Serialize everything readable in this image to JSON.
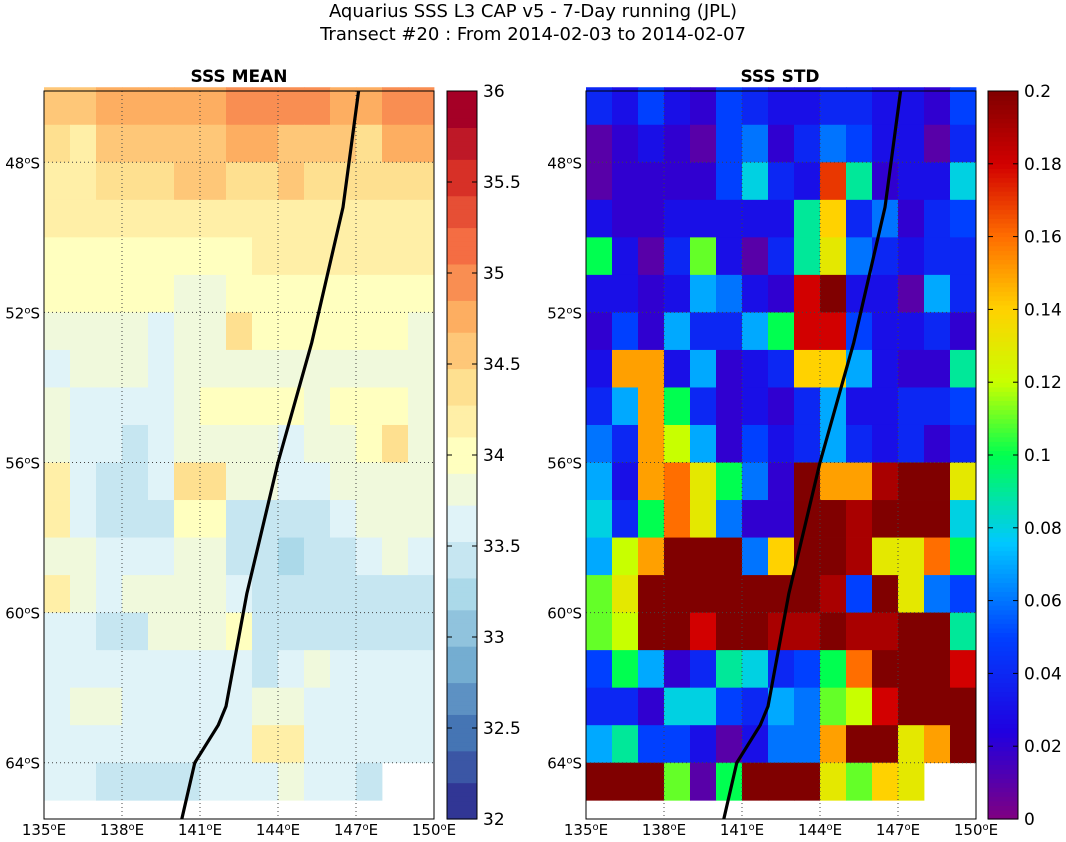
{
  "title_line1": "Aquarius SSS L3 CAP v5 - 7-Day running (JPL)",
  "title_line2": "Transect #20 : From 2014-02-03 to 2014-02-07",
  "chart_data": [
    {
      "type": "heatmap",
      "title": "SSS MEAN",
      "xlim": [
        135,
        150
      ],
      "ylim": [
        -65.5,
        -46.1
      ],
      "x_ticks": [
        135,
        138,
        141,
        144,
        147,
        150
      ],
      "x_tick_labels": [
        "135°E",
        "138°E",
        "141°E",
        "144°E",
        "147°E",
        "150°E"
      ],
      "y_ticks": [
        -48,
        -52,
        -56,
        -60,
        -64
      ],
      "y_tick_labels": [
        "48°S",
        "52°S",
        "56°S",
        "60°S",
        "64°S"
      ],
      "cell_lon_step": 1,
      "cell_lat_step": 1,
      "first_row_lat": -46.5,
      "colorbar": {
        "colormap": "RdYlBu_r",
        "range": [
          32,
          36
        ],
        "levels": 21,
        "ticks": [
          32,
          32.5,
          33,
          33.5,
          34,
          34.5,
          35,
          35.5,
          36
        ],
        "tick_labels": [
          "32",
          "32.5",
          "33",
          "33.5",
          "34",
          "34.5",
          "35",
          "35.5",
          "36"
        ]
      },
      "grid": true,
      "values": [
        [
          34.5,
          34.5,
          34.7,
          34.8,
          34.7,
          34.8,
          34.8,
          34.9,
          34.9,
          34.9,
          34.9,
          34.8,
          34.8,
          34.9,
          34.9
        ],
        [
          34.3,
          34.2,
          34.6,
          34.6,
          34.6,
          34.6,
          34.6,
          34.7,
          34.7,
          34.6,
          34.6,
          34.6,
          34.4,
          34.7,
          34.7
        ],
        [
          34.2,
          34.2,
          34.4,
          34.4,
          34.4,
          34.5,
          34.5,
          34.4,
          34.4,
          34.5,
          34.4,
          34.4,
          34.4,
          34.4,
          34.4
        ],
        [
          34.2,
          34.2,
          34.2,
          34.2,
          34.2,
          34.2,
          34.2,
          34.2,
          34.2,
          34.2,
          34.2,
          34.2,
          34.2,
          34.2,
          34.2
        ],
        [
          34.0,
          34.0,
          34.0,
          34.0,
          34.0,
          34.0,
          34.0,
          34.0,
          34.1,
          34.1,
          34.1,
          34.2,
          34.2,
          34.2,
          34.2
        ],
        [
          34.0,
          34.0,
          34.0,
          34.0,
          34.0,
          33.9,
          33.9,
          34.0,
          34.0,
          34.0,
          34.0,
          34.0,
          34.0,
          34.0,
          34.0
        ],
        [
          33.8,
          33.8,
          33.8,
          33.8,
          33.7,
          33.9,
          33.8,
          34.3,
          34.0,
          34.0,
          34.0,
          34.0,
          34.0,
          34.0,
          33.8
        ],
        [
          33.6,
          33.8,
          33.8,
          33.8,
          33.6,
          33.8,
          33.8,
          33.9,
          33.9,
          33.8,
          33.8,
          33.8,
          33.8,
          33.8,
          33.8
        ],
        [
          33.8,
          33.6,
          33.6,
          33.6,
          33.6,
          33.8,
          34.0,
          34.0,
          34.0,
          34.0,
          33.9,
          34.0,
          34.0,
          34.0,
          33.8
        ],
        [
          33.8,
          33.6,
          33.6,
          33.5,
          33.6,
          33.8,
          33.8,
          33.8,
          33.8,
          33.6,
          33.8,
          33.9,
          34.0,
          34.3,
          33.8
        ],
        [
          34.1,
          33.6,
          33.5,
          33.5,
          33.6,
          34.3,
          34.3,
          33.8,
          33.8,
          33.6,
          33.6,
          33.8,
          33.8,
          33.8,
          33.8
        ],
        [
          34.1,
          33.6,
          33.5,
          33.4,
          33.5,
          34.0,
          34.0,
          33.5,
          33.4,
          33.4,
          33.5,
          33.6,
          33.8,
          33.8,
          33.8
        ],
        [
          33.9,
          33.8,
          33.6,
          33.6,
          33.6,
          33.9,
          33.9,
          33.5,
          33.4,
          33.3,
          33.4,
          33.5,
          33.6,
          33.8,
          33.6
        ],
        [
          34.1,
          33.8,
          33.6,
          33.8,
          33.8,
          33.8,
          33.8,
          33.6,
          33.5,
          33.5,
          33.5,
          33.4,
          33.4,
          33.4,
          33.5
        ],
        [
          33.6,
          33.6,
          33.5,
          33.5,
          33.8,
          33.8,
          33.8,
          34.0,
          33.5,
          33.5,
          33.5,
          33.5,
          33.5,
          33.5,
          33.4
        ],
        [
          33.6,
          33.6,
          33.6,
          33.6,
          33.6,
          33.6,
          33.6,
          33.6,
          33.5,
          33.6,
          33.8,
          33.6,
          33.6,
          33.6,
          33.6
        ],
        [
          33.6,
          33.8,
          33.8,
          33.6,
          33.6,
          33.6,
          33.6,
          33.6,
          33.8,
          33.9,
          33.6,
          33.6,
          33.6,
          33.6,
          33.6
        ],
        [
          33.6,
          33.6,
          33.6,
          33.6,
          33.6,
          33.6,
          33.6,
          33.6,
          34.1,
          34.1,
          33.6,
          33.6,
          33.6,
          33.6,
          33.6
        ],
        [
          33.6,
          33.6,
          33.5,
          33.4,
          33.4,
          33.5,
          33.6,
          33.6,
          33.6,
          33.8,
          33.6,
          33.6,
          33.5,
          null,
          null
        ]
      ],
      "track": [
        [
          147.1,
          -46.1
        ],
        [
          146.5,
          -49.2
        ],
        [
          145.3,
          -52.8
        ],
        [
          144.0,
          -56.0
        ],
        [
          142.8,
          -59.5
        ],
        [
          142.0,
          -62.5
        ],
        [
          141.7,
          -63.0
        ],
        [
          140.8,
          -64.0
        ],
        [
          140.3,
          -65.5
        ]
      ]
    },
    {
      "type": "heatmap",
      "title": "SSS STD",
      "xlim": [
        135,
        150
      ],
      "ylim": [
        -65.5,
        -46.1
      ],
      "x_ticks": [
        135,
        138,
        141,
        144,
        147,
        150
      ],
      "x_tick_labels": [
        "135°E",
        "138°E",
        "141°E",
        "144°E",
        "147°E",
        "150°E"
      ],
      "y_ticks": [
        -48,
        -52,
        -56,
        -60,
        -64
      ],
      "y_tick_labels": [
        "48°S",
        "52°S",
        "56°S",
        "60°S",
        "64°S"
      ],
      "cell_lon_step": 1,
      "cell_lat_step": 1,
      "first_row_lat": -46.5,
      "colorbar": {
        "colormap": "jet-with-purple",
        "range": [
          0,
          0.2
        ],
        "ticks": [
          0,
          0.02,
          0.04,
          0.06,
          0.08,
          0.1,
          0.12,
          0.14,
          0.16,
          0.18,
          0.2
        ],
        "tick_labels": [
          "0",
          "0.02",
          "0.04",
          "0.06",
          "0.08",
          "0.1",
          "0.12",
          "0.14",
          "0.16",
          "0.18",
          "0.2"
        ]
      },
      "grid": true,
      "values": [
        [
          0.04,
          0.03,
          0.05,
          0.03,
          0.02,
          0.05,
          0.04,
          0.03,
          0.03,
          0.04,
          0.04,
          0.03,
          0.03,
          0.02,
          0.05
        ],
        [
          0.01,
          0.02,
          0.03,
          0.02,
          0.01,
          0.05,
          0.06,
          0.02,
          0.04,
          0.06,
          0.05,
          0.03,
          0.03,
          0.01,
          0.04
        ],
        [
          0.01,
          0.02,
          0.02,
          0.02,
          0.02,
          0.05,
          0.08,
          0.04,
          0.03,
          0.17,
          0.09,
          0.02,
          0.03,
          0.03,
          0.08
        ],
        [
          0.03,
          0.02,
          0.02,
          0.03,
          0.03,
          0.03,
          0.03,
          0.03,
          0.09,
          0.14,
          0.04,
          0.06,
          0.02,
          0.04,
          0.05
        ],
        [
          0.1,
          0.03,
          0.01,
          0.04,
          0.11,
          0.03,
          0.01,
          0.04,
          0.09,
          0.13,
          0.06,
          0.04,
          0.03,
          0.04,
          0.04
        ],
        [
          0.03,
          0.03,
          0.02,
          0.03,
          0.07,
          0.06,
          0.03,
          0.02,
          0.18,
          0.2,
          0.03,
          0.03,
          0.01,
          0.07,
          0.04
        ],
        [
          0.02,
          0.05,
          0.02,
          0.07,
          0.04,
          0.04,
          0.07,
          0.1,
          0.18,
          0.18,
          0.05,
          0.03,
          0.03,
          0.04,
          0.02
        ],
        [
          0.03,
          0.15,
          0.15,
          0.03,
          0.07,
          0.02,
          0.03,
          0.04,
          0.14,
          0.14,
          0.07,
          0.03,
          0.02,
          0.02,
          0.09
        ],
        [
          0.04,
          0.07,
          0.15,
          0.1,
          0.04,
          0.02,
          0.03,
          0.02,
          0.04,
          0.07,
          0.03,
          0.03,
          0.04,
          0.04,
          0.05
        ],
        [
          0.06,
          0.04,
          0.15,
          0.12,
          0.07,
          0.02,
          0.05,
          0.03,
          0.04,
          0.07,
          0.04,
          0.03,
          0.04,
          0.02,
          0.04
        ],
        [
          0.07,
          0.03,
          0.15,
          0.16,
          0.13,
          0.1,
          0.06,
          0.02,
          0.2,
          0.15,
          0.15,
          0.19,
          0.2,
          0.2,
          0.13
        ],
        [
          0.08,
          0.04,
          0.1,
          0.16,
          0.13,
          0.06,
          0.02,
          0.02,
          0.2,
          0.2,
          0.19,
          0.2,
          0.2,
          0.2,
          0.08
        ],
        [
          0.07,
          0.12,
          0.15,
          0.2,
          0.2,
          0.2,
          0.06,
          0.14,
          0.2,
          0.2,
          0.19,
          0.13,
          0.13,
          0.16,
          0.1
        ],
        [
          0.11,
          0.13,
          0.2,
          0.2,
          0.2,
          0.2,
          0.2,
          0.2,
          0.2,
          0.19,
          0.05,
          0.2,
          0.13,
          0.06,
          0.05
        ],
        [
          0.11,
          0.12,
          0.2,
          0.2,
          0.18,
          0.2,
          0.2,
          0.19,
          0.19,
          0.2,
          0.19,
          0.19,
          0.2,
          0.2,
          0.09
        ],
        [
          0.05,
          0.1,
          0.07,
          0.02,
          0.04,
          0.09,
          0.08,
          0.04,
          0.05,
          0.1,
          0.16,
          0.2,
          0.2,
          0.2,
          0.18
        ],
        [
          0.04,
          0.04,
          0.02,
          0.08,
          0.08,
          0.05,
          0.04,
          0.07,
          0.06,
          0.11,
          0.12,
          0.18,
          0.2,
          0.2,
          0.2
        ],
        [
          0.07,
          0.09,
          0.05,
          0.05,
          0.03,
          0.01,
          0.03,
          0.06,
          0.06,
          0.15,
          0.2,
          0.2,
          0.13,
          0.15,
          0.2
        ],
        [
          0.2,
          0.2,
          0.2,
          0.11,
          0.01,
          0.1,
          0.2,
          0.2,
          0.2,
          0.13,
          0.11,
          0.14,
          0.13,
          null,
          null
        ]
      ],
      "track": [
        [
          147.1,
          -46.1
        ],
        [
          146.5,
          -49.2
        ],
        [
          145.3,
          -52.8
        ],
        [
          144.0,
          -56.0
        ],
        [
          142.8,
          -59.5
        ],
        [
          142.0,
          -62.5
        ],
        [
          141.7,
          -63.0
        ],
        [
          140.8,
          -64.0
        ],
        [
          140.3,
          -65.5
        ]
      ]
    }
  ]
}
